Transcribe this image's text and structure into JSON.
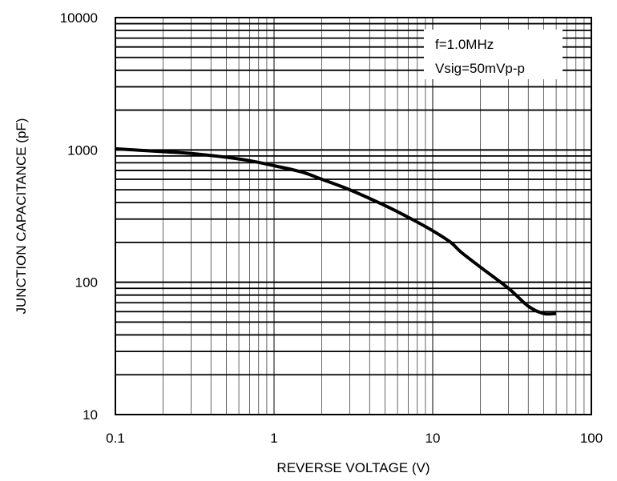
{
  "chart_data": {
    "type": "line",
    "xlabel": "REVERSE VOLTAGE (V)",
    "ylabel": "JUNCTION CAPACITANCE (pF)",
    "x_scale": "log",
    "y_scale": "log",
    "xlim": [
      0.1,
      100
    ],
    "ylim": [
      10,
      10000
    ],
    "x_ticks": [
      "0.1",
      "1",
      "10",
      "100"
    ],
    "y_ticks": [
      "10",
      "100",
      "1000",
      "10000"
    ],
    "grid": true,
    "legend_position": "top-right",
    "annotations": [
      "f=1.0MHz",
      "Vsig=50mVp-p"
    ],
    "series": [
      {
        "x": [
          0.1,
          0.2,
          0.3,
          0.5,
          0.7,
          1,
          1.5,
          2,
          3,
          5,
          7,
          10,
          13,
          15,
          20,
          30,
          40,
          50,
          60
        ],
        "y": [
          1020,
          970,
          940,
          880,
          830,
          760,
          680,
          600,
          500,
          380,
          310,
          245,
          200,
          170,
          130,
          90,
          66,
          58,
          58
        ]
      }
    ]
  }
}
